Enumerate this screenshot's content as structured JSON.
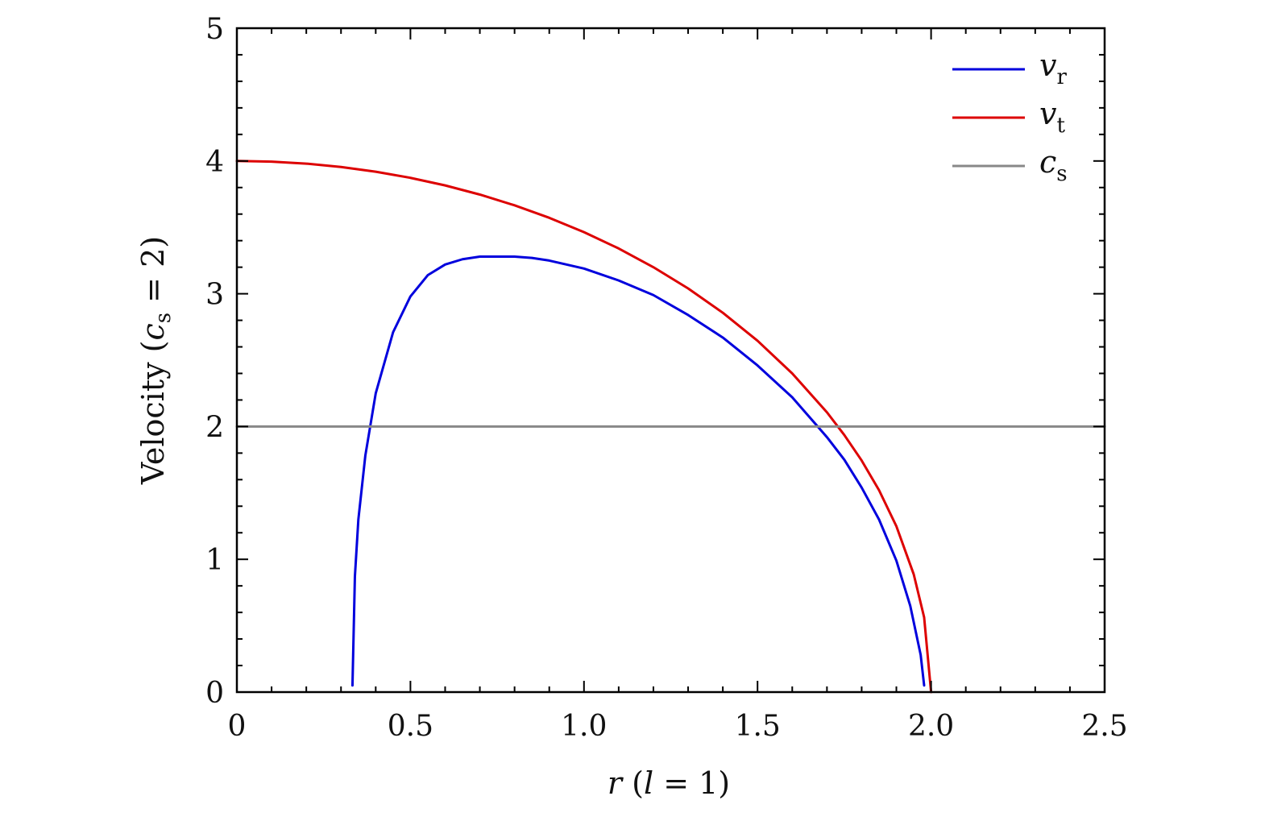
{
  "chart_data": {
    "type": "line",
    "xlabel": "r (l = 1)",
    "ylabel": "Velocity (c_s = 2)",
    "xlim": [
      0,
      2.5
    ],
    "ylim": [
      0,
      5
    ],
    "x_ticks": [
      "0",
      "0.5",
      "1.0",
      "1.5",
      "2.0",
      "2.5"
    ],
    "y_ticks": [
      "0",
      "1",
      "2",
      "3",
      "4",
      "5"
    ],
    "grid": false,
    "legend_position": "top-right",
    "series": [
      {
        "name": "v_r",
        "legend_main": "v",
        "legend_sub": "r",
        "color": "#0000dd",
        "x": [
          0.333,
          0.34,
          0.35,
          0.37,
          0.4,
          0.45,
          0.5,
          0.55,
          0.6,
          0.65,
          0.7,
          0.75,
          0.8,
          0.85,
          0.9,
          1.0,
          1.1,
          1.2,
          1.3,
          1.4,
          1.5,
          1.6,
          1.7,
          1.75,
          1.8,
          1.85,
          1.9,
          1.94,
          1.97,
          1.98
        ],
        "y": [
          0.05,
          0.87,
          1.3,
          1.78,
          2.25,
          2.71,
          2.98,
          3.14,
          3.22,
          3.26,
          3.28,
          3.28,
          3.28,
          3.27,
          3.25,
          3.19,
          3.1,
          2.99,
          2.84,
          2.67,
          2.46,
          2.22,
          1.92,
          1.75,
          1.54,
          1.3,
          0.99,
          0.65,
          0.28,
          0.05
        ]
      },
      {
        "name": "v_t",
        "legend_main": "v",
        "legend_sub": "t",
        "color": "#dd0000",
        "x": [
          0,
          0.1,
          0.2,
          0.3,
          0.4,
          0.5,
          0.6,
          0.7,
          0.8,
          0.9,
          1.0,
          1.1,
          1.2,
          1.3,
          1.4,
          1.5,
          1.6,
          1.7,
          1.75,
          1.8,
          1.85,
          1.9,
          1.95,
          1.98,
          2.0
        ],
        "y": [
          4.0,
          3.995,
          3.98,
          3.955,
          3.919,
          3.873,
          3.816,
          3.747,
          3.666,
          3.572,
          3.464,
          3.341,
          3.2,
          3.04,
          2.857,
          2.646,
          2.4,
          2.107,
          1.936,
          1.744,
          1.521,
          1.249,
          0.887,
          0.563,
          0.0
        ]
      },
      {
        "name": "c_s",
        "legend_main": "c",
        "legend_sub": "s",
        "color": "#888888",
        "x": [
          0,
          2.5
        ],
        "y": [
          2,
          2
        ]
      }
    ]
  }
}
